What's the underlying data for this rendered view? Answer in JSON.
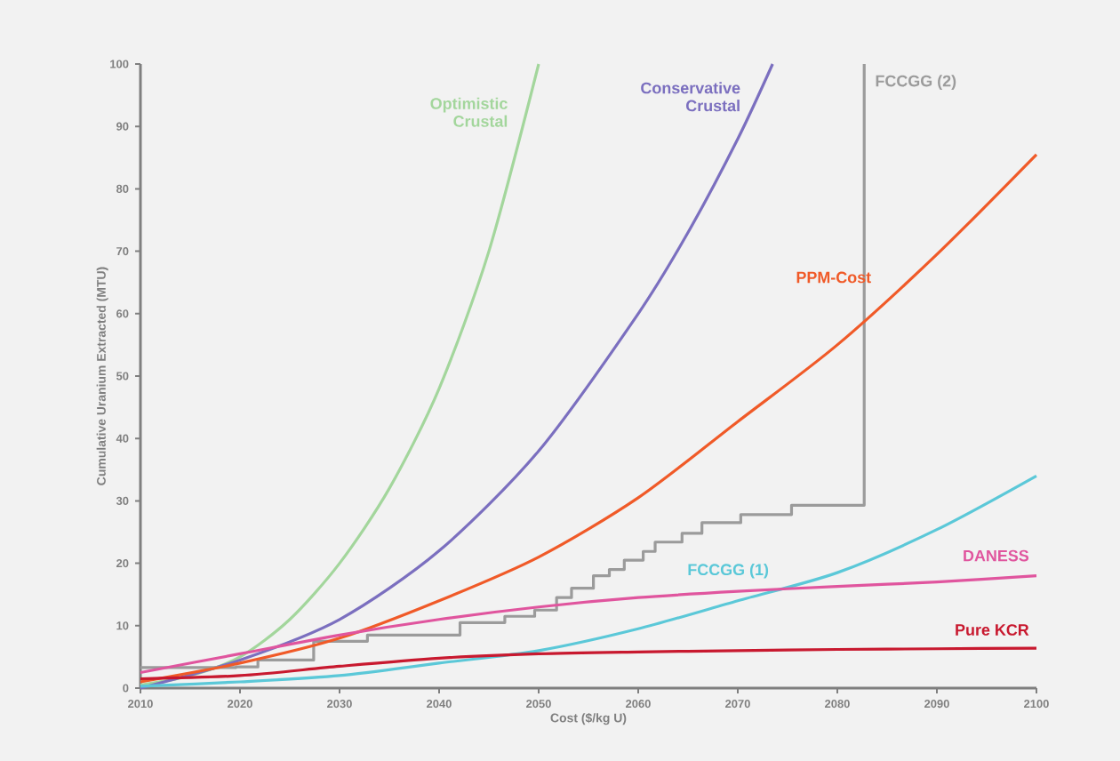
{
  "chart_data": {
    "type": "line",
    "xlabel": "Cost ($/kg U)",
    "ylabel": "Cumulative Uranium Extracted (MTU)",
    "xlim": [
      2010,
      2100
    ],
    "ylim": [
      0,
      100
    ],
    "xticks": [
      2010,
      2020,
      2030,
      2040,
      2050,
      2060,
      2070,
      2080,
      2090,
      2100
    ],
    "yticks": [
      0,
      10,
      20,
      30,
      40,
      50,
      60,
      70,
      80,
      90,
      100
    ],
    "grid": false,
    "legend": false,
    "marker": "none",
    "line_style": "solid",
    "series": [
      {
        "name": "Optimistic Crustal",
        "color": "#a3d69c",
        "x": [
          2010,
          2015,
          2020,
          2025,
          2030,
          2035,
          2040,
          2045,
          2050
        ],
        "values": [
          0.5,
          2,
          5,
          11,
          20,
          32,
          48,
          70,
          100
        ]
      },
      {
        "name": "Conservative Crustal",
        "color": "#7b6fbf",
        "x": [
          2010,
          2020,
          2030,
          2040,
          2050,
          2060,
          2065,
          2070,
          2073.5
        ],
        "values": [
          0,
          4.5,
          11,
          22,
          38,
          60,
          73,
          88,
          100
        ]
      },
      {
        "name": "FCCGG (2)",
        "type": "step",
        "color": "#9b9b9b",
        "x": [
          2010,
          2019.6,
          2021.8,
          2027.4,
          2032.8,
          2042.1,
          2046.6,
          2049.6,
          2051.8,
          2053.3,
          2055.5,
          2057.1,
          2058.6,
          2060.5,
          2061.7,
          2064.4,
          2066.4,
          2070.3,
          2075.4,
          2082.7,
          2082.7
        ],
        "values": [
          3.3,
          3.4,
          4.5,
          7.5,
          8.5,
          10.5,
          11.5,
          12.5,
          14.5,
          16,
          18,
          19,
          20.5,
          21.9,
          23.4,
          24.8,
          26.5,
          27.8,
          29.3,
          29.3,
          100
        ]
      },
      {
        "name": "PPM-Cost",
        "color": "#f05a28",
        "x": [
          2010,
          2020,
          2030,
          2040,
          2050,
          2060,
          2070,
          2080,
          2090,
          2100
        ],
        "values": [
          1,
          4,
          8,
          14,
          21,
          30.5,
          42.7,
          55,
          69.5,
          85.5
        ]
      },
      {
        "name": "FCCGG (1)",
        "color": "#5bc8d8",
        "x": [
          2010,
          2020,
          2030,
          2040,
          2050,
          2060,
          2070,
          2080,
          2090,
          2100
        ],
        "values": [
          0.3,
          1,
          2,
          4,
          6,
          9.5,
          14,
          18.5,
          25.4,
          34
        ]
      },
      {
        "name": "DANESS",
        "color": "#e0559e",
        "x": [
          2010,
          2020,
          2030,
          2040,
          2050,
          2060,
          2070,
          2080,
          2090,
          2100
        ],
        "values": [
          2.5,
          5.5,
          8.5,
          11,
          13,
          14.5,
          15.5,
          16.3,
          17,
          18
        ]
      },
      {
        "name": "Pure KCR",
        "color": "#c8192f",
        "x": [
          2010,
          2020,
          2030,
          2040,
          2050,
          2060,
          2070,
          2080,
          2090,
          2100
        ],
        "values": [
          1.5,
          2,
          3.5,
          4.8,
          5.5,
          5.8,
          6,
          6.2,
          6.3,
          6.4
        ]
      }
    ]
  }
}
